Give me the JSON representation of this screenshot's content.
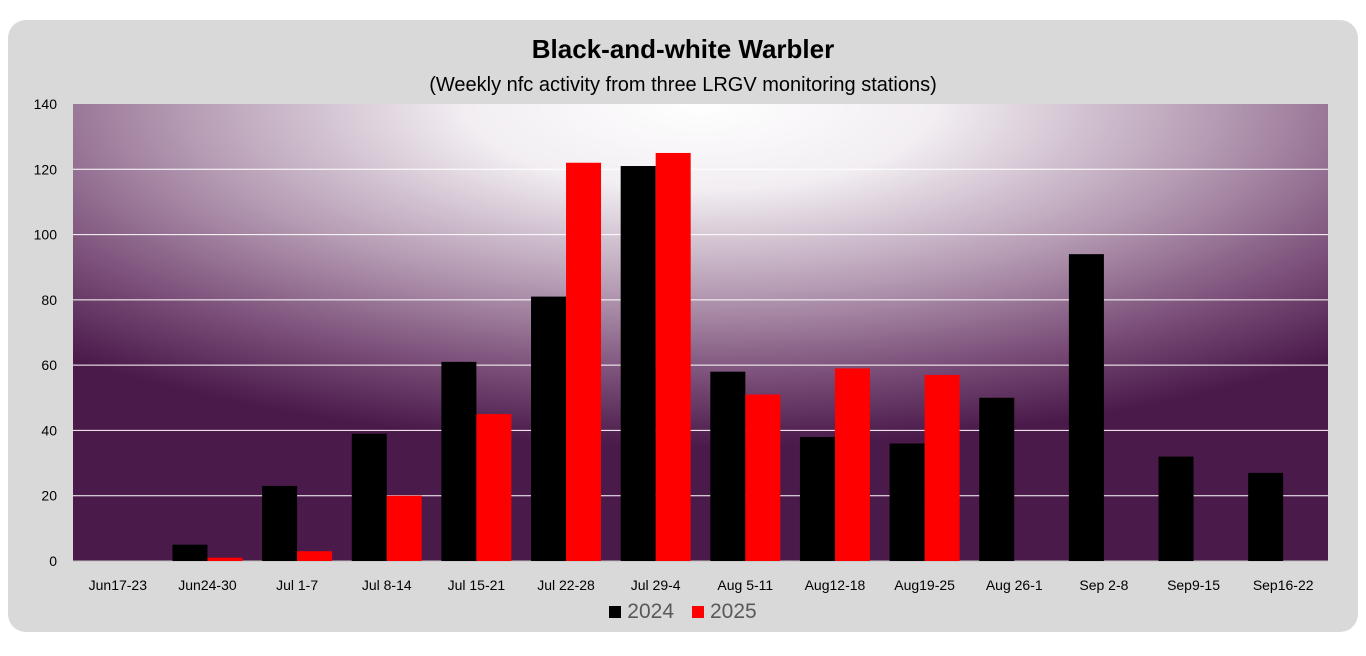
{
  "chart_data": {
    "type": "bar",
    "title": "Black-and-white Warbler",
    "subtitle": "(Weekly nfc activity from three LRGV monitoring stations)",
    "categories": [
      "Jun17-23",
      "Jun24-30",
      "Jul 1-7",
      "Jul 8-14",
      "Jul 15-21",
      "Jul 22-28",
      "Jul 29-4",
      "Aug 5-11",
      "Aug12-18",
      "Aug19-25",
      "Aug 26-1",
      "Sep 2-8",
      "Sep9-15",
      "Sep16-22"
    ],
    "series": [
      {
        "name": "2024",
        "color": "#000000",
        "values": [
          0,
          5,
          23,
          39,
          61,
          81,
          121,
          58,
          38,
          36,
          50,
          94,
          32,
          27
        ]
      },
      {
        "name": "2025",
        "color": "#ff0000",
        "values": [
          0,
          1,
          3,
          20,
          45,
          122,
          125,
          51,
          59,
          57,
          0,
          0,
          0,
          0
        ]
      }
    ],
    "ylim": [
      0,
      140
    ],
    "yticks": [
      0,
      20,
      40,
      60,
      80,
      100,
      120,
      140
    ],
    "grid": true,
    "legend": "bottom-center",
    "plot_background": "radial gradient: white center to dark purple #4a1a4a edges"
  }
}
